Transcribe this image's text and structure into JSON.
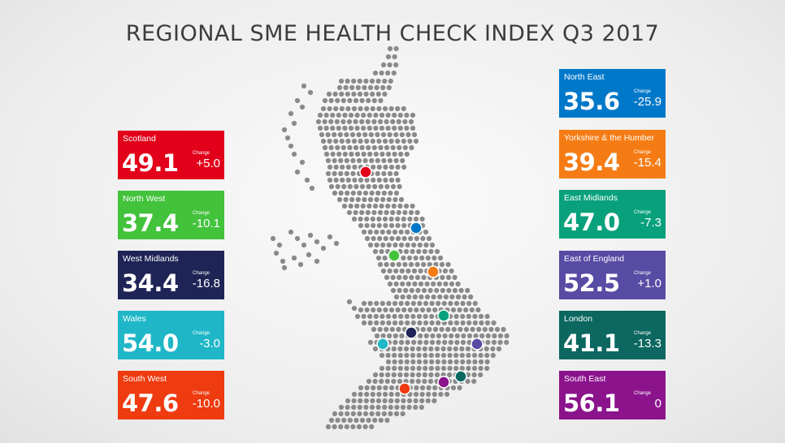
{
  "title": "REGIONAL SME HEALTH CHECK INDEX Q3 2017",
  "change_label": "Change",
  "regions": [
    {
      "name": "Scotland",
      "score": "49.1",
      "change": "+5.0",
      "color": "#e2001a",
      "side": "left"
    },
    {
      "name": "North West",
      "score": "37.4",
      "change": "-10.1",
      "color": "#43c23c",
      "side": "left"
    },
    {
      "name": "West Midlands",
      "score": "34.4",
      "change": "-16.8",
      "color": "#1f2456",
      "side": "left"
    },
    {
      "name": "Wales",
      "score": "54.0",
      "change": "-3.0",
      "color": "#1fb7c7",
      "side": "left"
    },
    {
      "name": "South West",
      "score": "47.6",
      "change": "-10.0",
      "color": "#ee3b0f",
      "side": "left"
    },
    {
      "name": "North East",
      "score": "35.6",
      "change": "-25.9",
      "color": "#0078c9",
      "side": "right"
    },
    {
      "name": "Yorkshire & the Humber",
      "score": "39.4",
      "change": "-15.4",
      "color": "#f57c14",
      "side": "right"
    },
    {
      "name": "East Midlands",
      "score": "47.0",
      "change": "-7.3",
      "color": "#08a17b",
      "side": "right"
    },
    {
      "name": "East of England",
      "score": "52.5",
      "change": "+1.0",
      "color": "#574ba4",
      "side": "right"
    },
    {
      "name": "London",
      "score": "41.1",
      "change": "-13.3",
      "color": "#0b6760",
      "side": "right"
    },
    {
      "name": "South East",
      "score": "56.1",
      "change": "0",
      "color": "#8b138c",
      "side": "right"
    }
  ]
}
